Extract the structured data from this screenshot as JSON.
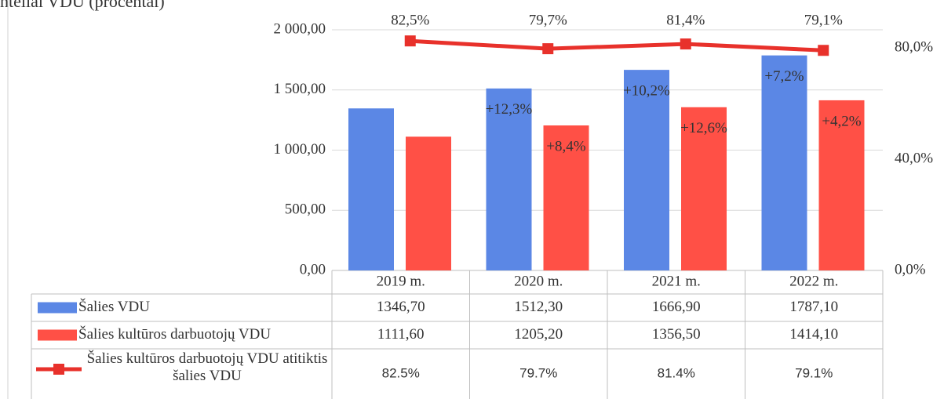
{
  "chart_data": {
    "type": "bar_line",
    "title": "ntelial VDU (procentai)",
    "categories": [
      "2019 m.",
      "2020 m.",
      "2021 m.",
      "2022 m."
    ],
    "ylim": [
      0,
      2000
    ],
    "yticks": [
      {
        "value": 0,
        "label": "0,00"
      },
      {
        "value": 500,
        "label": "500,00"
      },
      {
        "value": 1000,
        "label": "1 000,00"
      },
      {
        "value": 1500,
        "label": "1 500,00"
      },
      {
        "value": 2000,
        "label": "2 000,00"
      }
    ],
    "y2lim": [
      0,
      86.5
    ],
    "y2ticks": [
      {
        "value": 0,
        "label": "0,0%"
      },
      {
        "value": 40,
        "label": "40,0%"
      },
      {
        "value": 80,
        "label": "80,0%"
      }
    ],
    "grid": true,
    "series": [
      {
        "name": "Šalies VDU",
        "type": "bar",
        "color": "#5b87e5",
        "values": [
          1346.7,
          1512.3,
          1666.9,
          1787.1
        ],
        "growth_labels": [
          null,
          "+12,3%",
          "+10,2%",
          "+7,2%"
        ]
      },
      {
        "name": "Šalies kultūros darbuotojų VDU",
        "type": "bar",
        "color": "#ff5046",
        "values": [
          1111.6,
          1205.2,
          1356.5,
          1414.1
        ],
        "growth_labels": [
          null,
          "+8,4%",
          "+12,6%",
          "+4,2%"
        ]
      },
      {
        "name": "Šalies kultūros darbuotojų VDU atitiktis šalies VDU",
        "type": "line",
        "axis": "y2",
        "color": "#e8312b",
        "values": [
          82.5,
          79.7,
          81.4,
          79.1
        ],
        "value_labels": [
          "82,5%",
          "79,7%",
          "81,4%",
          "79,1%"
        ]
      }
    ],
    "data_table": {
      "rows": [
        [
          "1346,70",
          "1512,30",
          "1666,90",
          "1787,10"
        ],
        [
          "1111,60",
          "1205,20",
          "1356,50",
          "1414,10"
        ],
        [
          "82.5%",
          "79.7%",
          "81.4%",
          "79.1%"
        ]
      ]
    }
  }
}
